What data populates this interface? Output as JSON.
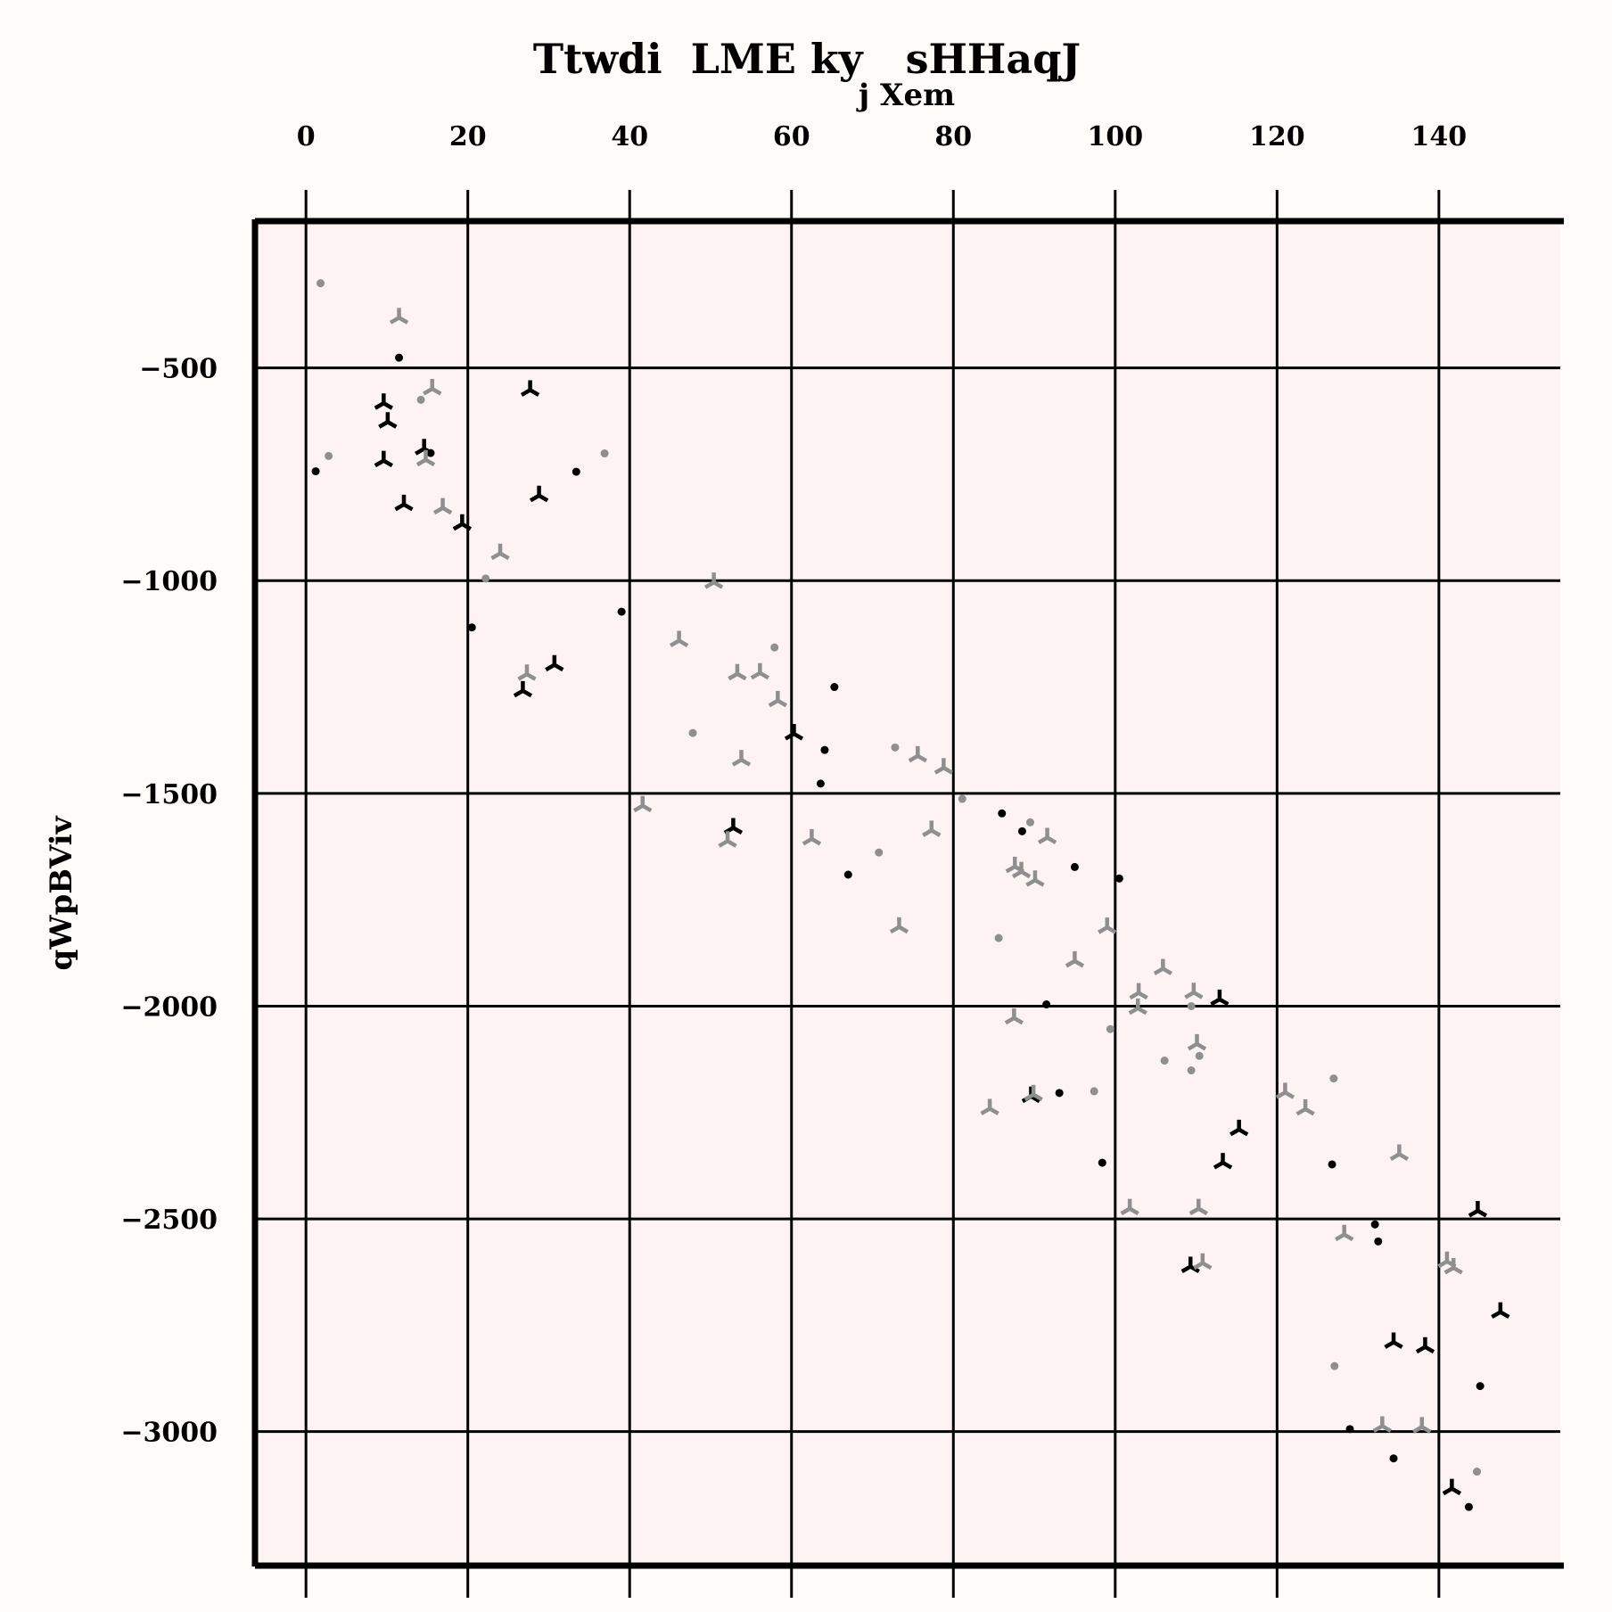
{
  "chart_data": {
    "type": "scatter",
    "title": "Ttwdi  LME ky   sHHaqJ",
    "xlabel": "j Xem",
    "ylabel": "qWpBViv",
    "xlim": [
      -6.3,
      155
    ],
    "ylim": [
      -3315,
      -155
    ],
    "x_ticks": [
      "0",
      "20",
      "40",
      "60",
      "80",
      "100",
      "120",
      "140"
    ],
    "x_tick_values": [
      0,
      20,
      40,
      60,
      80,
      100,
      120,
      140
    ],
    "y_ticks": [
      "−500",
      "−1000",
      "−1500",
      "−2000",
      "−2500",
      "−3000"
    ],
    "y_tick_values": [
      -500,
      -1000,
      -1500,
      -2000,
      -2500,
      -3000
    ],
    "x_axis_position": "top",
    "grid": true,
    "colors": {
      "page_bg": "#fffbf8",
      "plot_bg": "#fdf3f3",
      "black_series": "#000000",
      "gray_series": "#8f8f8f"
    },
    "series": [
      {
        "marker": "tri",
        "color": "#000000",
        "points": [
          [
            9.6,
            -583
          ],
          [
            10.1,
            -627
          ],
          [
            9.6,
            -718
          ],
          [
            14.6,
            -690
          ],
          [
            12.1,
            -821
          ],
          [
            27.7,
            -552
          ],
          [
            19.3,
            -867
          ],
          [
            28.8,
            -800
          ],
          [
            26.8,
            -1259
          ],
          [
            30.7,
            -1198
          ],
          [
            60.3,
            -1360
          ],
          [
            52.8,
            -1581
          ],
          [
            89.6,
            -2212
          ],
          [
            109.3,
            -2612
          ],
          [
            113.3,
            -2368
          ],
          [
            115.3,
            -2290
          ],
          [
            112.9,
            -1984
          ],
          [
            134.4,
            -2790
          ],
          [
            138.3,
            -2801
          ],
          [
            144.8,
            -2481
          ],
          [
            147.6,
            -2719
          ],
          [
            141.6,
            -3134
          ]
        ]
      },
      {
        "marker": "dot",
        "color": "#000000",
        "points": [
          [
            11.5,
            -476
          ],
          [
            1.2,
            -743
          ],
          [
            15.4,
            -700
          ],
          [
            33.4,
            -744
          ],
          [
            20.5,
            -1110
          ],
          [
            39,
            -1073
          ],
          [
            65.3,
            -1250
          ],
          [
            64.1,
            -1398
          ],
          [
            63.6,
            -1477
          ],
          [
            67,
            -1691
          ],
          [
            86,
            -1547
          ],
          [
            88.5,
            -1589
          ],
          [
            95,
            -1673
          ],
          [
            100.5,
            -1700
          ],
          [
            91.5,
            -1996
          ],
          [
            93.1,
            -2204
          ],
          [
            98.4,
            -2368
          ],
          [
            126.8,
            -2372
          ],
          [
            132.1,
            -2513
          ],
          [
            132.5,
            -2553
          ],
          [
            129,
            -2994
          ],
          [
            134.4,
            -3063
          ],
          [
            145.1,
            -2893
          ],
          [
            143.7,
            -3177
          ]
        ]
      },
      {
        "marker": "tri",
        "color": "#8f8f8f",
        "points": [
          [
            11.5,
            -382
          ],
          [
            15.6,
            -549
          ],
          [
            14.8,
            -716
          ],
          [
            16.9,
            -829
          ],
          [
            24,
            -936
          ],
          [
            50.4,
            -1004
          ],
          [
            27.3,
            -1220
          ],
          [
            46.1,
            -1141
          ],
          [
            53.3,
            -1219
          ],
          [
            56.1,
            -1217
          ],
          [
            58.3,
            -1282
          ],
          [
            53.8,
            -1421
          ],
          [
            41.6,
            -1529
          ],
          [
            52.1,
            -1612
          ],
          [
            62.5,
            -1607
          ],
          [
            73.3,
            -1814
          ],
          [
            75.6,
            -1412
          ],
          [
            78.8,
            -1440
          ],
          [
            77.3,
            -1587
          ],
          [
            87.6,
            -1672
          ],
          [
            88.4,
            -1684
          ],
          [
            90.1,
            -1704
          ],
          [
            91.6,
            -1604
          ],
          [
            95,
            -1894
          ],
          [
            99,
            -1815
          ],
          [
            102.9,
            -1969
          ],
          [
            102.8,
            -2005
          ],
          [
            105.9,
            -1912
          ],
          [
            109.7,
            -1968
          ],
          [
            110.1,
            -2089
          ],
          [
            87.5,
            -2028
          ],
          [
            84.5,
            -2241
          ],
          [
            89.9,
            -2208
          ],
          [
            101.8,
            -2476
          ],
          [
            110.3,
            -2476
          ],
          [
            110.8,
            -2604
          ],
          [
            121,
            -2203
          ],
          [
            123.5,
            -2242
          ],
          [
            128.3,
            -2537
          ],
          [
            135.1,
            -2348
          ],
          [
            133,
            -2987
          ],
          [
            137.9,
            -2989
          ],
          [
            141,
            -2600
          ],
          [
            141.8,
            -2615
          ]
        ]
      },
      {
        "marker": "dot",
        "color": "#8f8f8f",
        "points": [
          [
            1.8,
            -301
          ],
          [
            2.8,
            -707
          ],
          [
            14.2,
            -575
          ],
          [
            22.2,
            -995
          ],
          [
            36.9,
            -701
          ],
          [
            57.9,
            -1157
          ],
          [
            47.8,
            -1358
          ],
          [
            72.8,
            -1392
          ],
          [
            70.8,
            -1639
          ],
          [
            81.1,
            -1513
          ],
          [
            85.6,
            -1840
          ],
          [
            89.5,
            -1568
          ],
          [
            97.4,
            -2200
          ],
          [
            99.4,
            -2054
          ],
          [
            106.1,
            -2128
          ],
          [
            109.4,
            -2000
          ],
          [
            109.4,
            -2151
          ],
          [
            110.4,
            -2117
          ],
          [
            127,
            -2170
          ],
          [
            127.1,
            -2846
          ],
          [
            144.7,
            -3094
          ]
        ]
      }
    ]
  }
}
